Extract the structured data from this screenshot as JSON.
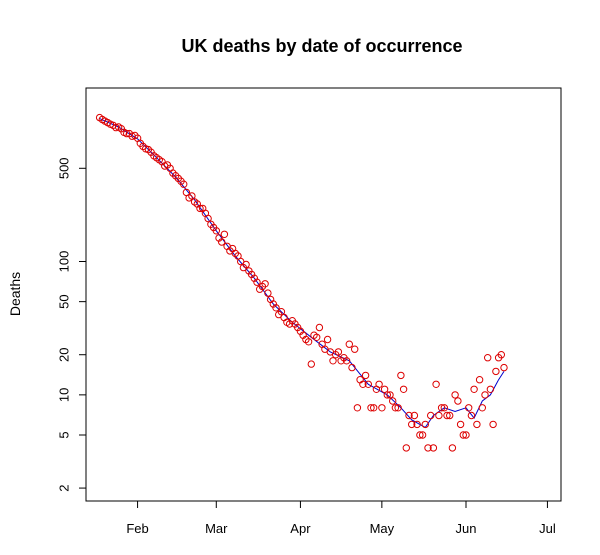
{
  "chart_data": {
    "type": "scatter",
    "title": "UK deaths by date of occurrence",
    "xlabel": "",
    "ylabel": "Deaths",
    "y_scale": "log",
    "ylim": [
      1.6,
      2000
    ],
    "y_ticks": [
      2,
      5,
      10,
      20,
      50,
      100,
      500
    ],
    "xlim": [
      "2020-01-13",
      "2020-07-06"
    ],
    "x_ticks": [
      {
        "date": "2020-02-01",
        "label": "Feb"
      },
      {
        "date": "2020-03-01",
        "label": "Mar"
      },
      {
        "date": "2020-04-01",
        "label": "Apr"
      },
      {
        "date": "2020-05-01",
        "label": "May"
      },
      {
        "date": "2020-06-01",
        "label": "Jun"
      },
      {
        "date": "2020-07-01",
        "label": "Jul"
      }
    ],
    "grid": false,
    "colors": {
      "points": "#dd0000",
      "trend": "#0000cc"
    },
    "series": [
      {
        "type": "scatter",
        "marker": "open-circle",
        "points": [
          [
            "2020-01-18",
            1200
          ],
          [
            "2020-01-19",
            1160
          ],
          [
            "2020-01-20",
            1130
          ],
          [
            "2020-01-21",
            1100
          ],
          [
            "2020-01-22",
            1070
          ],
          [
            "2020-01-23",
            1050
          ],
          [
            "2020-01-24",
            1010
          ],
          [
            "2020-01-25",
            1020
          ],
          [
            "2020-01-26",
            990
          ],
          [
            "2020-01-27",
            930
          ],
          [
            "2020-01-28",
            910
          ],
          [
            "2020-01-29",
            910
          ],
          [
            "2020-01-30",
            870
          ],
          [
            "2020-01-31",
            880
          ],
          [
            "2020-02-01",
            840
          ],
          [
            "2020-02-02",
            770
          ],
          [
            "2020-02-03",
            730
          ],
          [
            "2020-02-04",
            700
          ],
          [
            "2020-02-05",
            690
          ],
          [
            "2020-02-06",
            660
          ],
          [
            "2020-02-07",
            620
          ],
          [
            "2020-02-08",
            600
          ],
          [
            "2020-02-09",
            580
          ],
          [
            "2020-02-10",
            560
          ],
          [
            "2020-02-11",
            520
          ],
          [
            "2020-02-12",
            530
          ],
          [
            "2020-02-13",
            500
          ],
          [
            "2020-02-14",
            460
          ],
          [
            "2020-02-15",
            440
          ],
          [
            "2020-02-16",
            420
          ],
          [
            "2020-02-17",
            400
          ],
          [
            "2020-02-18",
            380
          ],
          [
            "2020-02-19",
            330
          ],
          [
            "2020-02-20",
            300
          ],
          [
            "2020-02-21",
            310
          ],
          [
            "2020-02-22",
            280
          ],
          [
            "2020-02-23",
            270
          ],
          [
            "2020-02-24",
            250
          ],
          [
            "2020-02-25",
            250
          ],
          [
            "2020-02-26",
            230
          ],
          [
            "2020-02-27",
            210
          ],
          [
            "2020-02-28",
            190
          ],
          [
            "2020-02-29",
            180
          ],
          [
            "2020-03-01",
            170
          ],
          [
            "2020-03-02",
            150
          ],
          [
            "2020-03-03",
            140
          ],
          [
            "2020-03-04",
            160
          ],
          [
            "2020-03-05",
            130
          ],
          [
            "2020-03-06",
            120
          ],
          [
            "2020-03-07",
            125
          ],
          [
            "2020-03-08",
            115
          ],
          [
            "2020-03-09",
            110
          ],
          [
            "2020-03-10",
            100
          ],
          [
            "2020-03-11",
            90
          ],
          [
            "2020-03-12",
            95
          ],
          [
            "2020-03-13",
            85
          ],
          [
            "2020-03-14",
            80
          ],
          [
            "2020-03-15",
            75
          ],
          [
            "2020-03-16",
            70
          ],
          [
            "2020-03-17",
            62
          ],
          [
            "2020-03-18",
            65
          ],
          [
            "2020-03-19",
            68
          ],
          [
            "2020-03-20",
            58
          ],
          [
            "2020-03-21",
            52
          ],
          [
            "2020-03-22",
            48
          ],
          [
            "2020-03-23",
            45
          ],
          [
            "2020-03-24",
            40
          ],
          [
            "2020-03-25",
            42
          ],
          [
            "2020-03-26",
            38
          ],
          [
            "2020-03-27",
            35
          ],
          [
            "2020-03-28",
            34
          ],
          [
            "2020-03-29",
            36
          ],
          [
            "2020-03-30",
            34
          ],
          [
            "2020-03-31",
            32
          ],
          [
            "2020-04-01",
            30
          ],
          [
            "2020-04-02",
            28
          ],
          [
            "2020-04-03",
            26
          ],
          [
            "2020-04-04",
            25
          ],
          [
            "2020-04-05",
            17
          ],
          [
            "2020-04-06",
            28
          ],
          [
            "2020-04-07",
            27
          ],
          [
            "2020-04-08",
            32
          ],
          [
            "2020-04-09",
            24
          ],
          [
            "2020-04-10",
            22
          ],
          [
            "2020-04-11",
            26
          ],
          [
            "2020-04-12",
            21
          ],
          [
            "2020-04-13",
            18
          ],
          [
            "2020-04-14",
            20
          ],
          [
            "2020-04-15",
            21
          ],
          [
            "2020-04-16",
            18
          ],
          [
            "2020-04-17",
            19
          ],
          [
            "2020-04-18",
            18
          ],
          [
            "2020-04-19",
            24
          ],
          [
            "2020-04-20",
            16
          ],
          [
            "2020-04-21",
            22
          ],
          [
            "2020-04-22",
            8
          ],
          [
            "2020-04-23",
            13
          ],
          [
            "2020-04-24",
            12
          ],
          [
            "2020-04-25",
            14
          ],
          [
            "2020-04-26",
            12
          ],
          [
            "2020-04-27",
            8
          ],
          [
            "2020-04-28",
            8
          ],
          [
            "2020-04-29",
            11
          ],
          [
            "2020-04-30",
            12
          ],
          [
            "2020-05-01",
            8
          ],
          [
            "2020-05-02",
            11
          ],
          [
            "2020-05-03",
            10
          ],
          [
            "2020-05-04",
            10
          ],
          [
            "2020-05-05",
            9
          ],
          [
            "2020-05-06",
            8
          ],
          [
            "2020-05-07",
            8
          ],
          [
            "2020-05-08",
            14
          ],
          [
            "2020-05-09",
            11
          ],
          [
            "2020-05-10",
            4
          ],
          [
            "2020-05-11",
            7
          ],
          [
            "2020-05-12",
            6
          ],
          [
            "2020-05-13",
            7
          ],
          [
            "2020-05-14",
            6
          ],
          [
            "2020-05-15",
            5
          ],
          [
            "2020-05-16",
            5
          ],
          [
            "2020-05-17",
            6
          ],
          [
            "2020-05-18",
            4
          ],
          [
            "2020-05-19",
            7
          ],
          [
            "2020-05-20",
            4
          ],
          [
            "2020-05-21",
            12
          ],
          [
            "2020-05-22",
            7
          ],
          [
            "2020-05-23",
            8
          ],
          [
            "2020-05-24",
            8
          ],
          [
            "2020-05-25",
            7
          ],
          [
            "2020-05-26",
            7
          ],
          [
            "2020-05-27",
            4
          ],
          [
            "2020-05-28",
            10
          ],
          [
            "2020-05-29",
            9
          ],
          [
            "2020-05-30",
            6
          ],
          [
            "2020-05-31",
            5
          ],
          [
            "2020-06-01",
            5
          ],
          [
            "2020-06-02",
            8
          ],
          [
            "2020-06-03",
            7
          ],
          [
            "2020-06-04",
            11
          ],
          [
            "2020-06-05",
            6
          ],
          [
            "2020-06-06",
            13
          ],
          [
            "2020-06-07",
            8
          ],
          [
            "2020-06-08",
            10
          ],
          [
            "2020-06-09",
            19
          ],
          [
            "2020-06-10",
            11
          ],
          [
            "2020-06-11",
            6
          ],
          [
            "2020-06-12",
            15
          ],
          [
            "2020-06-13",
            19
          ],
          [
            "2020-06-14",
            20
          ],
          [
            "2020-06-15",
            16
          ]
        ]
      },
      {
        "type": "line",
        "points": [
          [
            "2020-01-18",
            1180
          ],
          [
            "2020-01-25",
            1020
          ],
          [
            "2020-02-01",
            830
          ],
          [
            "2020-02-08",
            600
          ],
          [
            "2020-02-15",
            430
          ],
          [
            "2020-02-22",
            290
          ],
          [
            "2020-03-01",
            170
          ],
          [
            "2020-03-08",
            110
          ],
          [
            "2020-03-15",
            75
          ],
          [
            "2020-03-22",
            48
          ],
          [
            "2020-03-29",
            35
          ],
          [
            "2020-04-05",
            27
          ],
          [
            "2020-04-12",
            21
          ],
          [
            "2020-04-19",
            18
          ],
          [
            "2020-04-26",
            12
          ],
          [
            "2020-05-03",
            10
          ],
          [
            "2020-05-08",
            8
          ],
          [
            "2020-05-12",
            6.5
          ],
          [
            "2020-05-15",
            6
          ],
          [
            "2020-05-17",
            5.7
          ],
          [
            "2020-05-20",
            7
          ],
          [
            "2020-05-24",
            8
          ],
          [
            "2020-05-28",
            7.5
          ],
          [
            "2020-06-01",
            8
          ],
          [
            "2020-06-04",
            6.7
          ],
          [
            "2020-06-07",
            9
          ],
          [
            "2020-06-10",
            10
          ],
          [
            "2020-06-13",
            13
          ],
          [
            "2020-06-15",
            15
          ]
        ]
      }
    ]
  }
}
